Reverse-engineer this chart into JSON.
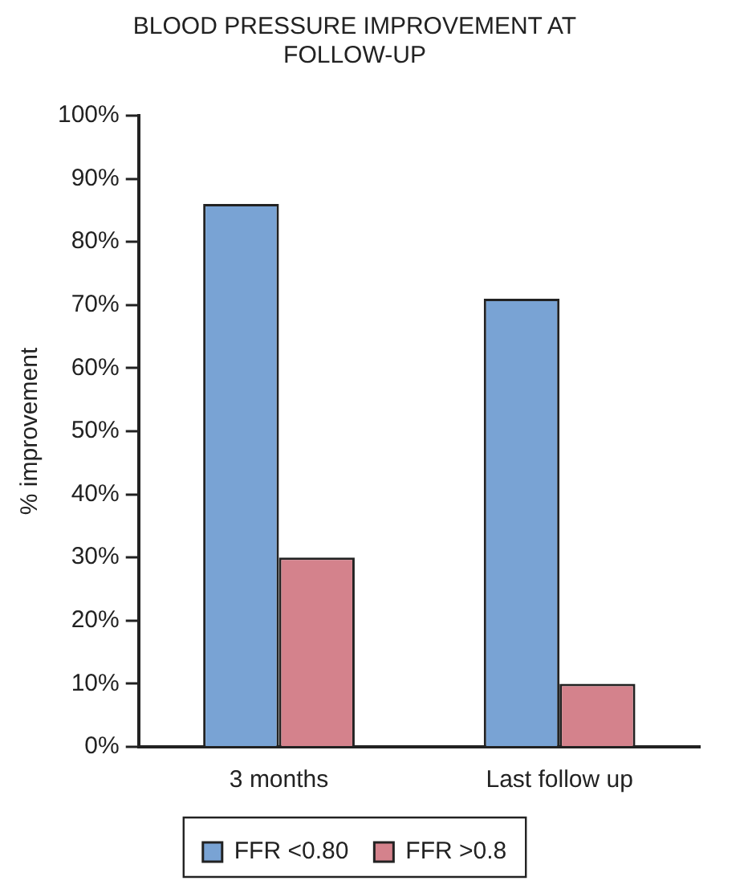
{
  "chart_data": {
    "type": "bar",
    "title": "BLOOD PRESSURE IMPROVEMENT AT FOLLOW-UP",
    "ylabel": "% improvement",
    "categories": [
      "3 months",
      "Last follow up"
    ],
    "series": [
      {
        "name": "FFR <0.80",
        "color": "#79a3d4",
        "values": [
          86,
          71
        ]
      },
      {
        "name": "FFR >0.8",
        "color": "#d4828c",
        "values": [
          30,
          10
        ]
      }
    ],
    "ylim": [
      0,
      100
    ],
    "yticks": [
      {
        "value": 0,
        "label": "0%"
      },
      {
        "value": 10,
        "label": "10%"
      },
      {
        "value": 20,
        "label": "20%"
      },
      {
        "value": 30,
        "label": "30%"
      },
      {
        "value": 40,
        "label": "40%"
      },
      {
        "value": 50,
        "label": "50%"
      },
      {
        "value": 60,
        "label": "60%"
      },
      {
        "value": 70,
        "label": "70%"
      },
      {
        "value": 80,
        "label": "80%"
      },
      {
        "value": 90,
        "label": "90%"
      },
      {
        "value": 100,
        "label": "100%"
      }
    ],
    "grid": false,
    "legend": "bottom"
  }
}
